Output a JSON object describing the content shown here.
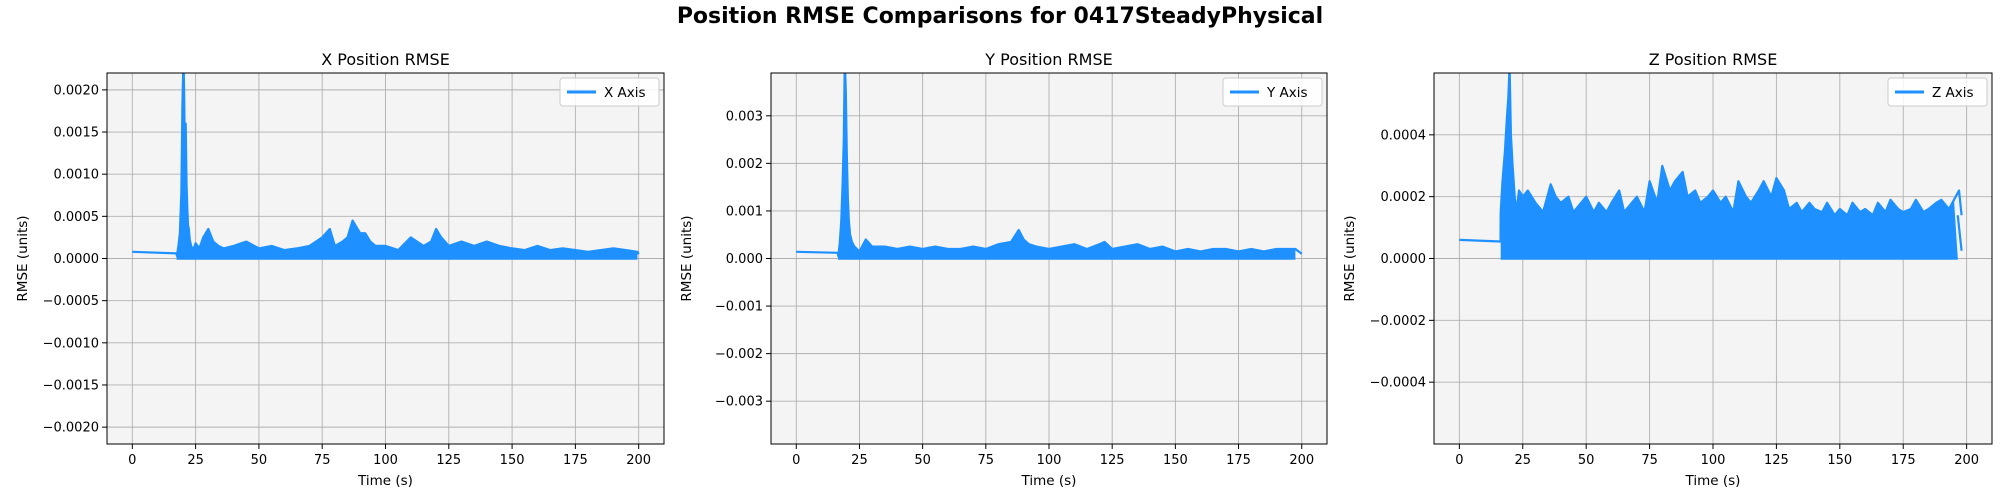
{
  "figure": {
    "suptitle": "Position RMSE Comparisons for 0417SteadyPhysical"
  },
  "colors": {
    "line": "#1e90ff",
    "plot_bg": "#f4f4f4",
    "grid": "#b0b0b0",
    "axis": "#000000"
  },
  "chart_data": [
    {
      "type": "line",
      "title": "X Position RMSE",
      "xlabel": "Time (s)",
      "ylabel": "RMSE (units)",
      "xlim": [
        -10,
        210
      ],
      "ylim": [
        -0.0022,
        0.0022
      ],
      "xticks": [
        0,
        25,
        50,
        75,
        100,
        125,
        150,
        175,
        200
      ],
      "yticks": [
        -0.002,
        -0.0015,
        -0.001,
        -0.0005,
        0.0,
        0.0005,
        0.001,
        0.0015,
        0.002
      ],
      "ytick_labels": [
        "−0.0020",
        "−0.0015",
        "−0.0010",
        "−0.0005",
        "0.0000",
        "0.0005",
        "0.0010",
        "0.0015",
        "0.0020"
      ],
      "grid": true,
      "legend": "top-right",
      "series": [
        {
          "name": "X Axis",
          "x": [
            0,
            17.5,
            17.6,
            18.2,
            18.8,
            19.4,
            19.8,
            20.2,
            20.5,
            20.8,
            21.1,
            21.4,
            21.7,
            22,
            22.3,
            22.7,
            23.2,
            24,
            25,
            26.5,
            28,
            30,
            32,
            34,
            36,
            40,
            45,
            50,
            55,
            60,
            65,
            70,
            75,
            78,
            80,
            83,
            85,
            87,
            88,
            90,
            92,
            94,
            96,
            100,
            105,
            110,
            115,
            118,
            120,
            122,
            125,
            130,
            135,
            140,
            145,
            150,
            155,
            160,
            165,
            170,
            175,
            180,
            185,
            190,
            195,
            199.5,
            200
          ],
          "y": [
            8e-05,
            6e-05,
            3e-05,
            0.00015,
            0.0003,
            0.0008,
            0.0018,
            0.0024,
            0.0019,
            0.0011,
            0.0016,
            0.0009,
            0.0006,
            0.0004,
            0.00035,
            0.00022,
            0.00015,
            0.0001,
            0.00018,
            0.00012,
            0.00025,
            0.00035,
            0.0002,
            0.00015,
            0.00012,
            0.00015,
            0.0002,
            0.00012,
            0.00015,
            0.0001,
            0.00012,
            0.00015,
            0.00025,
            0.00035,
            0.00015,
            0.0002,
            0.00025,
            0.00045,
            0.0004,
            0.0003,
            0.0003,
            0.0002,
            0.00015,
            0.00015,
            0.0001,
            0.00025,
            0.00015,
            0.0002,
            0.00035,
            0.00025,
            0.00015,
            0.0002,
            0.00015,
            0.0002,
            0.00015,
            0.00012,
            0.0001,
            0.00015,
            0.0001,
            0.00012,
            0.0001,
            8e-05,
            0.0001,
            0.00012,
            0.0001,
            8e-05,
            5e-05
          ],
          "floor": 0.0,
          "band_start": 17.5,
          "band_end": 199.5
        }
      ]
    },
    {
      "type": "line",
      "title": "Y Position RMSE",
      "xlabel": "Time (s)",
      "ylabel": "RMSE (units)",
      "xlim": [
        -10,
        210
      ],
      "ylim": [
        -0.0039,
        0.0039
      ],
      "xticks": [
        0,
        25,
        50,
        75,
        100,
        125,
        150,
        175,
        200
      ],
      "yticks": [
        -0.003,
        -0.002,
        -0.001,
        0.0,
        0.001,
        0.002,
        0.003
      ],
      "ytick_labels": [
        "−0.003",
        "−0.002",
        "−0.001",
        "0.000",
        "0.001",
        "0.002",
        "0.003"
      ],
      "grid": true,
      "legend": "top-right",
      "series": [
        {
          "name": "Y Axis",
          "x": [
            0,
            16.5,
            16.6,
            17.2,
            17.8,
            18.3,
            18.8,
            19.2,
            19.6,
            20,
            20.4,
            20.8,
            21.3,
            22,
            23,
            24,
            25,
            26,
            27.5,
            30,
            35,
            40,
            45,
            50,
            55,
            60,
            65,
            70,
            75,
            80,
            85,
            88,
            90,
            92,
            95,
            100,
            105,
            110,
            115,
            120,
            122,
            125,
            130,
            135,
            140,
            145,
            150,
            155,
            160,
            165,
            170,
            175,
            180,
            185,
            190,
            195,
            197.5,
            200
          ],
          "y": [
            0.00014,
            0.00012,
            5e-05,
            0.0003,
            0.0008,
            0.0015,
            0.0025,
            0.0042,
            0.0035,
            0.0022,
            0.0013,
            0.0008,
            0.0005,
            0.00035,
            0.00025,
            0.0002,
            0.00015,
            0.00025,
            0.0004,
            0.00025,
            0.00025,
            0.0002,
            0.00025,
            0.0002,
            0.00025,
            0.0002,
            0.0002,
            0.00025,
            0.0002,
            0.0003,
            0.00035,
            0.0006,
            0.0004,
            0.0003,
            0.00025,
            0.0002,
            0.00025,
            0.0003,
            0.0002,
            0.0003,
            0.00035,
            0.0002,
            0.00025,
            0.0003,
            0.0002,
            0.00025,
            0.00015,
            0.0002,
            0.00015,
            0.0002,
            0.0002,
            0.00015,
            0.0002,
            0.00015,
            0.0002,
            0.0002,
            0.0002,
            0.0001
          ],
          "floor": 0.0,
          "band_start": 16.5,
          "band_end": 197.5
        }
      ]
    },
    {
      "type": "line",
      "title": "Z Position RMSE",
      "xlabel": "Time (s)",
      "ylabel": "RMSE (units)",
      "xlim": [
        -10,
        210
      ],
      "ylim": [
        -0.0006,
        0.0006
      ],
      "xticks": [
        0,
        25,
        50,
        75,
        100,
        125,
        150,
        175,
        200
      ],
      "yticks": [
        -0.0004,
        -0.0002,
        0.0,
        0.0002,
        0.0004
      ],
      "ytick_labels": [
        "−0.0004",
        "−0.0002",
        "0.0000",
        "0.0002",
        "0.0004"
      ],
      "grid": true,
      "legend": "top-right",
      "series": [
        {
          "name": "Z Axis",
          "x": [
            0,
            16.2,
            16.3,
            17,
            18,
            18.7,
            19.3,
            19.8,
            20.3,
            21,
            21.8,
            22.5,
            23.5,
            25,
            27,
            30,
            33,
            36,
            38,
            40,
            43,
            45,
            48,
            50,
            53,
            55,
            58,
            60,
            63,
            65,
            68,
            70,
            73,
            75,
            78,
            80,
            83,
            85,
            88,
            90,
            93,
            95,
            98,
            100,
            103,
            105,
            108,
            110,
            113,
            115,
            118,
            120,
            123,
            125,
            128,
            130,
            133,
            135,
            138,
            140,
            143,
            145,
            148,
            150,
            153,
            155,
            158,
            160,
            163,
            165,
            168,
            170,
            173,
            175,
            178,
            180,
            183,
            185,
            188,
            190,
            193,
            195,
            197,
            198
          ],
          "y": [
            6e-05,
            5.5e-05,
            0.00015,
            0.00025,
            0.00035,
            0.00045,
            0.00052,
            0.00062,
            0.0004,
            0.0003,
            0.0002,
            0.00015,
            0.00022,
            0.0002,
            0.00022,
            0.00018,
            0.00015,
            0.00024,
            0.0002,
            0.00018,
            0.0002,
            0.00015,
            0.00018,
            0.0002,
            0.00015,
            0.00018,
            0.00015,
            0.00018,
            0.00022,
            0.00015,
            0.00018,
            0.0002,
            0.00015,
            0.00025,
            0.00018,
            0.0003,
            0.00022,
            0.00025,
            0.00028,
            0.0002,
            0.00022,
            0.00018,
            0.0002,
            0.00022,
            0.00018,
            0.0002,
            0.00015,
            0.00025,
            0.0002,
            0.00018,
            0.00022,
            0.00025,
            0.0002,
            0.00026,
            0.00022,
            0.00016,
            0.00018,
            0.00015,
            0.00018,
            0.00016,
            0.00015,
            0.00018,
            0.00014,
            0.00016,
            0.00014,
            0.00018,
            0.00015,
            0.00016,
            0.00014,
            0.00018,
            0.00015,
            0.00019,
            0.00016,
            0.00015,
            0.00016,
            0.00019,
            0.00015,
            0.00016,
            0.00018,
            0.00019,
            0.00016,
            0.00019,
            0.00022,
            0.00014
          ],
          "floor": 0.0,
          "band_start": 16.3,
          "band_end": 196.5,
          "end_x": 198,
          "end_y": 2.5e-05
        }
      ]
    }
  ]
}
